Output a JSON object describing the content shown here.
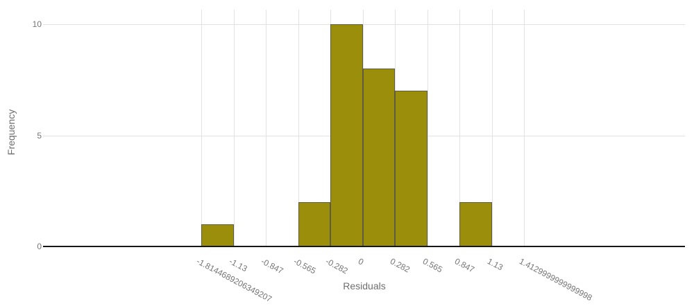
{
  "chart_data": {
    "type": "bar",
    "subtype": "histogram",
    "title": "",
    "xlabel": "Residuals",
    "ylabel": "Frequency",
    "x_tick_labels": [
      "-1.8144689206349207",
      "-1.13",
      "-0.847",
      "-0.565",
      "-0.282",
      "0",
      "0.282",
      "0.565",
      "0.847",
      "1.13",
      "1.4129999999999998"
    ],
    "bin_edges": [
      -1.8144689206349207,
      -1.13,
      -0.847,
      -0.565,
      -0.282,
      0,
      0.282,
      0.565,
      0.847,
      1.13,
      1.4129999999999998
    ],
    "bin_frequencies": [
      1,
      0,
      0,
      2,
      10,
      8,
      7,
      0,
      2,
      0
    ],
    "y_tick_labels": [
      "0",
      "5",
      "10"
    ],
    "y_tick_values": [
      0,
      5,
      10
    ],
    "ylim": [
      0,
      10.65
    ],
    "grid": true,
    "legend": "none",
    "x_tick_rotation_deg": 28,
    "colors": {
      "bar_fill": "#9a8e0a",
      "bar_border": "#5e5b40",
      "gridline": "#e2e2e2",
      "axis_line": "#161616",
      "tick_label": "#757575",
      "axis_title": "#6e6e6e",
      "background": "#ffffff"
    }
  }
}
